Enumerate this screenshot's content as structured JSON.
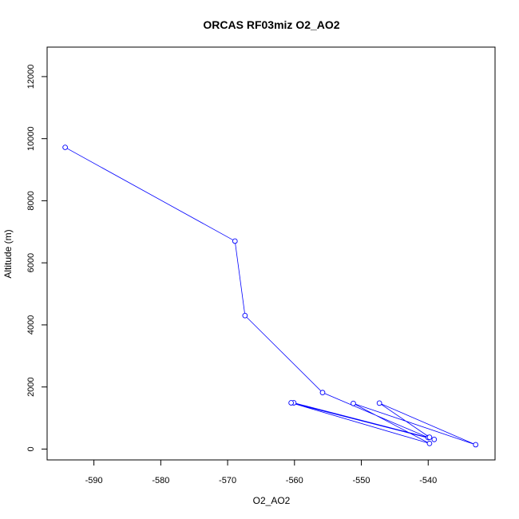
{
  "chart_data": {
    "type": "line",
    "title": "ORCAS RF03miz O2_AO2",
    "xlabel": "O2_AO2",
    "ylabel": "Altitude (m)",
    "xlim": [
      -597,
      -530
    ],
    "ylim": [
      -350,
      12950
    ],
    "xticks": [
      -590,
      -580,
      -570,
      -560,
      -550,
      -540
    ],
    "yticks": [
      0,
      2000,
      4000,
      6000,
      8000,
      10000,
      12000
    ],
    "grid": false,
    "markers": "open-circle",
    "series": [
      {
        "color": "#0000ff",
        "points": [
          {
            "x": -594.3,
            "y": 9720
          },
          {
            "x": -568.9,
            "y": 6700
          },
          {
            "x": -567.4,
            "y": 4300
          },
          {
            "x": -555.8,
            "y": 1820
          },
          {
            "x": -540.0,
            "y": 370
          },
          {
            "x": -560.1,
            "y": 1490
          },
          {
            "x": -539.1,
            "y": 310
          },
          {
            "x": -560.5,
            "y": 1490
          },
          {
            "x": -539.8,
            "y": 180
          },
          {
            "x": -551.2,
            "y": 1470
          },
          {
            "x": -532.9,
            "y": 140
          },
          {
            "x": -547.3,
            "y": 1480
          },
          {
            "x": -539.8,
            "y": 380
          }
        ]
      }
    ]
  }
}
